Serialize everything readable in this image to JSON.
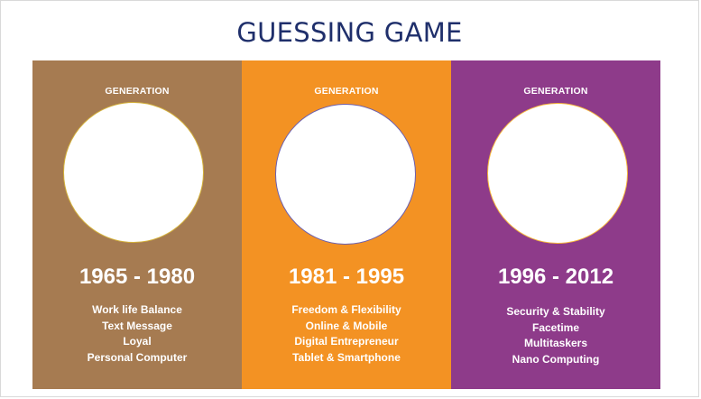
{
  "title": "GUESSING GAME",
  "generations": [
    {
      "heading": "GENERATION",
      "years": "1965 - 1980",
      "traits": [
        "Work life Balance",
        "Text Message",
        "Loyal",
        "Personal Computer"
      ],
      "color": "#a67b51",
      "circle_border": "#d4b13a"
    },
    {
      "heading": "GENERATION",
      "years": "1981 - 1995",
      "traits": [
        "Freedom & Flexibility",
        "Online & Mobile",
        "Digital Entrepreneur",
        "Tablet & Smartphone"
      ],
      "color": "#f39223",
      "circle_border": "#6a5fb0"
    },
    {
      "heading": "GENERATION",
      "years": "1996 - 2012",
      "traits": [
        "Security & Stability",
        "Facetime",
        "Multitaskers",
        "Nano Computing"
      ],
      "color": "#8e3b8a",
      "circle_border": "#f5b63b"
    }
  ]
}
